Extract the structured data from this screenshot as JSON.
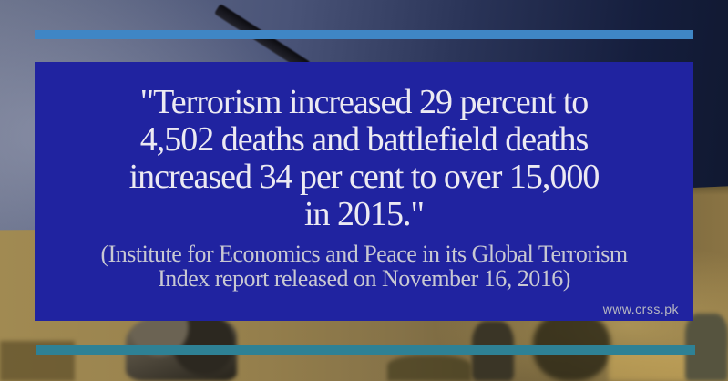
{
  "colors": {
    "top_bar": "#3f86c5",
    "bottom_bar": "#2e8195",
    "quote_box": "#2023a0",
    "quote_text": "#eceaf2",
    "attribution_text": "#c8c8d2",
    "watermark_text": "#b7b8c2"
  },
  "quote": {
    "lines": [
      "\"Terrorism increased 29 percent to",
      "4,502 deaths and battlefield deaths",
      "increased 34 per cent to over 15,000",
      "in 2015.\""
    ]
  },
  "attribution": {
    "lines": [
      "(Institute for Economics and Peace in its Global Terrorism",
      "Index report released on November 16, 2016)"
    ]
  },
  "watermark": "www.crss.pk"
}
